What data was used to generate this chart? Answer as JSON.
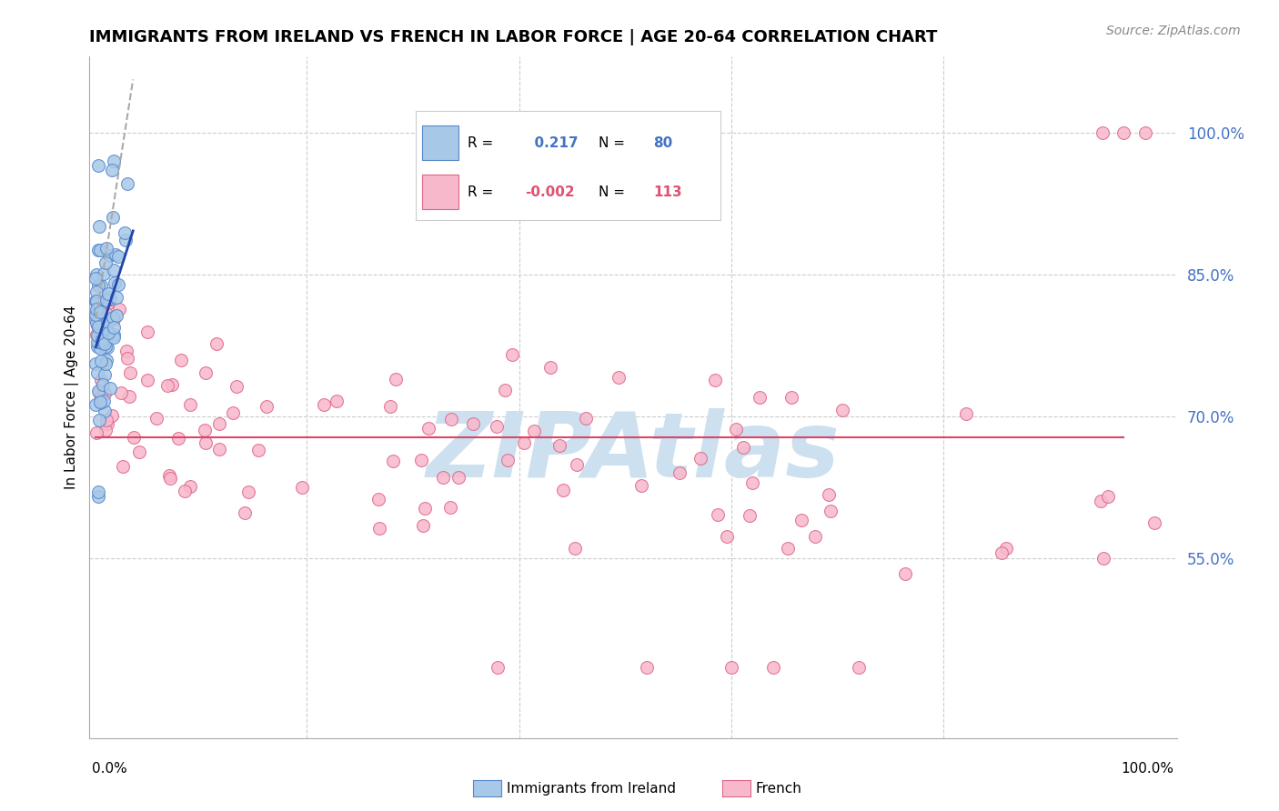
{
  "title": "IMMIGRANTS FROM IRELAND VS FRENCH IN LABOR FORCE | AGE 20-64 CORRELATION CHART",
  "source": "Source: ZipAtlas.com",
  "ylabel": "In Labor Force | Age 20-64",
  "xlim": [
    -0.005,
    1.02
  ],
  "ylim": [
    0.36,
    1.08
  ],
  "ireland_R": 0.217,
  "ireland_N": 80,
  "french_R": -0.002,
  "french_N": 113,
  "ireland_color": "#a8c8e8",
  "ireland_edge": "#5588cc",
  "french_color": "#f8b8cc",
  "french_edge": "#dd6688",
  "trend_ireland_color": "#2244aa",
  "trend_french_color": "#dd4466",
  "grid_color": "#cccccc",
  "background_color": "#ffffff",
  "watermark_text": "ZIPAtlas",
  "watermark_color": "#cce0f0",
  "yticks": [
    0.55,
    0.7,
    0.85,
    1.0
  ],
  "ytick_labels": [
    "55.0%",
    "70.0%",
    "85.0%",
    "100.0%"
  ],
  "title_fontsize": 13,
  "source_fontsize": 10,
  "label_fontsize": 11,
  "legend_fontsize": 12,
  "ytick_fontsize": 12,
  "xtick_fontsize": 11,
  "marker_size": 100
}
